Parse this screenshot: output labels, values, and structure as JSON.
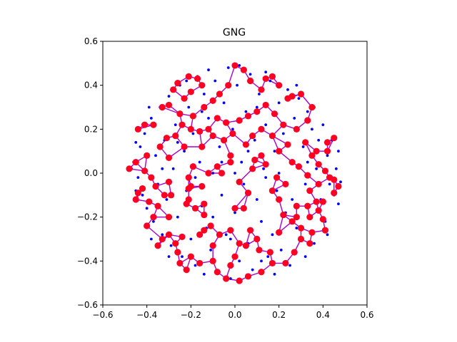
{
  "chart_data": {
    "type": "scatter",
    "title": "GNG",
    "xlabel": "",
    "ylabel": "",
    "xlim": [
      -0.6,
      0.6
    ],
    "ylim": [
      -0.6,
      0.6
    ],
    "xticks": [
      "−0.6",
      "−0.4",
      "−0.2",
      "0.0",
      "0.2",
      "0.4",
      "0.6"
    ],
    "yticks": [
      "−0.6",
      "−0.4",
      "−0.2",
      "0.0",
      "0.2",
      "0.4",
      "0.6"
    ],
    "grid": false,
    "colors": {
      "samples": "#0000ff",
      "nodes": "#ff0022",
      "edges": "#aa00cc"
    },
    "series": [
      {
        "kind": "samples",
        "points": [
          [
            -0.46,
            0.05
          ],
          [
            -0.44,
            -0.02
          ],
          [
            -0.43,
            0.12
          ],
          [
            -0.42,
            -0.1
          ],
          [
            -0.41,
            0.18
          ],
          [
            -0.4,
            -0.16
          ],
          [
            -0.38,
            0.25
          ],
          [
            -0.37,
            -0.22
          ],
          [
            -0.36,
            0.08
          ],
          [
            -0.35,
            -0.05
          ],
          [
            -0.34,
            0.3
          ],
          [
            -0.33,
            -0.28
          ],
          [
            -0.32,
            0.15
          ],
          [
            -0.31,
            -0.12
          ],
          [
            -0.3,
            0.35
          ],
          [
            -0.29,
            -0.33
          ],
          [
            -0.28,
            0.02
          ],
          [
            -0.27,
            0.22
          ],
          [
            -0.26,
            -0.2
          ],
          [
            -0.25,
            0.4
          ],
          [
            -0.24,
            -0.38
          ],
          [
            -0.23,
            0.1
          ],
          [
            -0.22,
            -0.08
          ],
          [
            -0.21,
            0.3
          ],
          [
            -0.2,
            -0.3
          ],
          [
            -0.19,
            0.18
          ],
          [
            -0.18,
            -0.42
          ],
          [
            -0.17,
            0.44
          ],
          [
            -0.16,
            0.05
          ],
          [
            -0.15,
            -0.15
          ],
          [
            -0.14,
            0.36
          ],
          [
            -0.13,
            -0.25
          ],
          [
            -0.12,
            0.25
          ],
          [
            -0.11,
            -0.35
          ],
          [
            -0.1,
            0.0
          ],
          [
            -0.09,
            0.42
          ],
          [
            -0.08,
            -0.45
          ],
          [
            -0.07,
            0.12
          ],
          [
            -0.06,
            -0.1
          ],
          [
            -0.05,
            0.32
          ],
          [
            -0.04,
            -0.28
          ],
          [
            -0.03,
            0.48
          ],
          [
            -0.02,
            -0.48
          ],
          [
            -0.01,
            0.2
          ],
          [
            0.0,
            -0.18
          ],
          [
            0.01,
            0.4
          ],
          [
            0.02,
            -0.4
          ],
          [
            0.03,
            0.05
          ],
          [
            0.04,
            -0.05
          ],
          [
            0.05,
            0.28
          ],
          [
            0.06,
            -0.32
          ],
          [
            0.07,
            0.45
          ],
          [
            0.08,
            -0.44
          ],
          [
            0.09,
            0.15
          ],
          [
            0.1,
            -0.12
          ],
          [
            0.11,
            0.36
          ],
          [
            0.12,
            -0.22
          ],
          [
            0.13,
            0.02
          ],
          [
            0.14,
            0.22
          ],
          [
            0.15,
            -0.38
          ],
          [
            0.16,
            0.42
          ],
          [
            0.17,
            -0.28
          ],
          [
            0.18,
            0.1
          ],
          [
            0.19,
            -0.08
          ],
          [
            0.2,
            0.32
          ],
          [
            0.21,
            -0.35
          ],
          [
            0.22,
            0.18
          ],
          [
            0.23,
            -0.18
          ],
          [
            0.24,
            0.38
          ],
          [
            0.25,
            -0.42
          ],
          [
            0.26,
            0.05
          ],
          [
            0.27,
            0.25
          ],
          [
            0.28,
            -0.25
          ],
          [
            0.29,
            0.34
          ],
          [
            0.3,
            -0.3
          ],
          [
            0.31,
            0.12
          ],
          [
            0.32,
            -0.05
          ],
          [
            0.33,
            0.28
          ],
          [
            0.34,
            -0.2
          ],
          [
            0.35,
            0.2
          ],
          [
            0.36,
            -0.32
          ],
          [
            0.37,
            0.02
          ],
          [
            0.38,
            0.15
          ],
          [
            0.39,
            -0.12
          ],
          [
            0.4,
            0.22
          ],
          [
            0.41,
            -0.22
          ],
          [
            0.42,
            0.08
          ],
          [
            0.43,
            -0.05
          ],
          [
            0.44,
            0.15
          ],
          [
            0.45,
            -0.1
          ],
          [
            0.46,
            0.02
          ],
          [
            0.47,
            0.1
          ],
          [
            0.48,
            -0.04
          ],
          [
            0.47,
            -0.14
          ],
          [
            -0.47,
            0.02
          ],
          [
            -0.45,
            0.14
          ],
          [
            -0.45,
            -0.08
          ],
          [
            -0.39,
            0.3
          ],
          [
            -0.38,
            -0.3
          ],
          [
            -0.3,
            -0.38
          ],
          [
            -0.22,
            0.42
          ],
          [
            -0.12,
            0.47
          ],
          [
            0.02,
            0.49
          ],
          [
            0.14,
            0.46
          ],
          [
            0.28,
            0.4
          ],
          [
            0.36,
            0.3
          ],
          [
            0.42,
            -0.28
          ],
          [
            0.32,
            -0.38
          ],
          [
            0.18,
            -0.46
          ],
          [
            -0.14,
            -0.46
          ],
          [
            -0.28,
            0.38
          ],
          [
            -0.06,
            0.05
          ],
          [
            0.06,
            0.1
          ],
          [
            -0.18,
            -0.02
          ],
          [
            0.2,
            0.0
          ],
          [
            -0.02,
            -0.3
          ],
          [
            0.1,
            0.3
          ],
          [
            -0.26,
            0.14
          ],
          [
            0.26,
            -0.12
          ],
          [
            0.0,
            0.0
          ],
          [
            -0.1,
            -0.2
          ],
          [
            0.14,
            -0.02
          ],
          [
            -0.33,
            0.02
          ],
          [
            0.33,
            0.05
          ],
          [
            -0.15,
            0.28
          ],
          [
            0.12,
            -0.4
          ]
        ]
      },
      {
        "kind": "nodes",
        "points": [
          [
            -0.44,
            0.2
          ],
          [
            -0.41,
            0.22
          ],
          [
            -0.37,
            0.22
          ],
          [
            -0.33,
            0.3
          ],
          [
            -0.3,
            0.31
          ],
          [
            -0.28,
            0.38
          ],
          [
            -0.26,
            0.41
          ],
          [
            -0.21,
            0.44
          ],
          [
            -0.17,
            0.43
          ],
          [
            -0.15,
            0.4
          ],
          [
            -0.2,
            0.37
          ],
          [
            -0.23,
            0.34
          ],
          [
            -0.25,
            0.27
          ],
          [
            -0.24,
            0.22
          ],
          [
            -0.19,
            0.26
          ],
          [
            -0.14,
            0.3
          ],
          [
            -0.1,
            0.33
          ],
          [
            -0.07,
            0.36
          ],
          [
            -0.03,
            0.4
          ],
          [
            0.0,
            0.49
          ],
          [
            0.04,
            0.47
          ],
          [
            0.07,
            0.42
          ],
          [
            0.12,
            0.38
          ],
          [
            0.14,
            0.43
          ],
          [
            0.17,
            0.44
          ],
          [
            0.2,
            0.4
          ],
          [
            0.24,
            0.34
          ],
          [
            0.26,
            0.35
          ],
          [
            0.3,
            0.36
          ],
          [
            0.35,
            0.3
          ],
          [
            0.33,
            0.24
          ],
          [
            0.28,
            0.2
          ],
          [
            0.22,
            0.22
          ],
          [
            0.18,
            0.27
          ],
          [
            0.14,
            0.31
          ],
          [
            0.1,
            0.28
          ],
          [
            0.06,
            0.26
          ],
          [
            0.02,
            0.24
          ],
          [
            -0.01,
            0.18
          ],
          [
            -0.04,
            0.23
          ],
          [
            -0.08,
            0.25
          ],
          [
            -0.12,
            0.2
          ],
          [
            -0.16,
            0.19
          ],
          [
            -0.2,
            0.2
          ],
          [
            -0.23,
            0.12
          ],
          [
            -0.31,
            0.16
          ],
          [
            -0.34,
            0.12
          ],
          [
            -0.3,
            0.07
          ],
          [
            -0.4,
            0.08
          ],
          [
            -0.45,
            0.05
          ],
          [
            -0.48,
            0.02
          ],
          [
            -0.41,
            0.01
          ],
          [
            -0.38,
            -0.02
          ],
          [
            -0.36,
            -0.06
          ],
          [
            -0.42,
            -0.07
          ],
          [
            -0.44,
            -0.09
          ],
          [
            -0.45,
            -0.12
          ],
          [
            -0.39,
            -0.13
          ],
          [
            -0.35,
            -0.15
          ],
          [
            -0.32,
            -0.1
          ],
          [
            -0.29,
            -0.1
          ],
          [
            -0.3,
            -0.04
          ],
          [
            -0.21,
            -0.02
          ],
          [
            -0.21,
            -0.07
          ],
          [
            -0.21,
            -0.12
          ],
          [
            -0.14,
            -0.14
          ],
          [
            -0.14,
            -0.19
          ],
          [
            -0.14,
            -0.26
          ],
          [
            -0.16,
            -0.28
          ],
          [
            -0.1,
            -0.33
          ],
          [
            -0.07,
            -0.28
          ],
          [
            -0.02,
            -0.26
          ],
          [
            0.0,
            -0.16
          ],
          [
            0.04,
            -0.16
          ],
          [
            0.06,
            -0.09
          ],
          [
            0.02,
            -0.04
          ],
          [
            -0.02,
            0.05
          ],
          [
            0.05,
            0.13
          ],
          [
            0.09,
            0.06
          ],
          [
            0.12,
            0.08
          ],
          [
            0.08,
            0.17
          ],
          [
            0.12,
            0.2
          ],
          [
            0.17,
            0.17
          ],
          [
            0.24,
            0.13
          ],
          [
            0.2,
            0.1
          ],
          [
            0.19,
            -0.02
          ],
          [
            0.23,
            -0.05
          ],
          [
            0.26,
            0.05
          ],
          [
            0.29,
            0.03
          ],
          [
            0.35,
            0.08
          ],
          [
            0.37,
            0.1
          ],
          [
            0.42,
            0.14
          ],
          [
            0.45,
            0.16
          ],
          [
            0.42,
            0.1
          ],
          [
            0.41,
            0.01
          ],
          [
            0.43,
            -0.02
          ],
          [
            0.45,
            -0.03
          ],
          [
            0.47,
            -0.06
          ],
          [
            0.45,
            -0.09
          ],
          [
            0.4,
            -0.13
          ],
          [
            0.37,
            -0.13
          ],
          [
            0.34,
            -0.08
          ],
          [
            0.33,
            -0.15
          ],
          [
            0.38,
            -0.17
          ],
          [
            0.4,
            -0.21
          ],
          [
            0.41,
            -0.26
          ],
          [
            0.35,
            -0.27
          ],
          [
            0.3,
            -0.3
          ],
          [
            0.34,
            -0.32
          ],
          [
            0.27,
            -0.36
          ],
          [
            0.23,
            -0.41
          ],
          [
            0.17,
            -0.41
          ],
          [
            0.16,
            -0.36
          ],
          [
            0.11,
            -0.35
          ],
          [
            0.05,
            -0.33
          ],
          [
            0.1,
            -0.3
          ],
          [
            0.07,
            -0.26
          ],
          [
            0.02,
            -0.32
          ],
          [
            0.0,
            -0.38
          ],
          [
            -0.02,
            -0.42
          ],
          [
            -0.04,
            -0.48
          ],
          [
            0.02,
            -0.49
          ],
          [
            0.06,
            -0.47
          ],
          [
            0.12,
            -0.45
          ],
          [
            -0.1,
            -0.4
          ],
          [
            -0.08,
            -0.45
          ],
          [
            -0.16,
            -0.41
          ],
          [
            -0.2,
            -0.38
          ],
          [
            -0.22,
            -0.44
          ],
          [
            -0.25,
            -0.41
          ],
          [
            -0.27,
            -0.32
          ],
          [
            -0.24,
            -0.29
          ],
          [
            -0.3,
            -0.28
          ],
          [
            -0.33,
            -0.3
          ],
          [
            -0.35,
            -0.33
          ],
          [
            -0.4,
            -0.24
          ],
          [
            -0.37,
            -0.2
          ],
          [
            -0.2,
            -0.06
          ],
          [
            -0.18,
            -0.16
          ],
          [
            -0.15,
            -0.06
          ],
          [
            -0.12,
            0.0
          ],
          [
            -0.08,
            0.03
          ],
          [
            -0.06,
            0.0
          ],
          [
            -0.02,
            0.08
          ],
          [
            -0.05,
            0.15
          ],
          [
            0.08,
            0.02
          ],
          [
            0.14,
            0.04
          ],
          [
            0.17,
            -0.08
          ],
          [
            0.2,
            -0.12
          ],
          [
            0.28,
            -0.15
          ],
          [
            0.28,
            -0.2
          ],
          [
            0.22,
            -0.19
          ],
          [
            0.2,
            -0.27
          ],
          [
            0.26,
            -0.22
          ],
          [
            0.3,
            -0.25
          ],
          [
            0.34,
            -0.2
          ],
          [
            0.38,
            -0.05
          ],
          [
            0.33,
            -0.01
          ],
          [
            0.32,
            0.14
          ],
          [
            0.38,
            0.04
          ],
          [
            -0.27,
            0.17
          ],
          [
            -0.3,
            -0.2
          ],
          [
            -0.26,
            -0.36
          ],
          [
            -0.22,
            -0.14
          ],
          [
            -0.15,
            0.12
          ],
          [
            -0.1,
            0.17
          ],
          [
            -0.11,
            -0.24
          ],
          [
            -0.19,
            0.03
          ]
        ]
      }
    ]
  }
}
